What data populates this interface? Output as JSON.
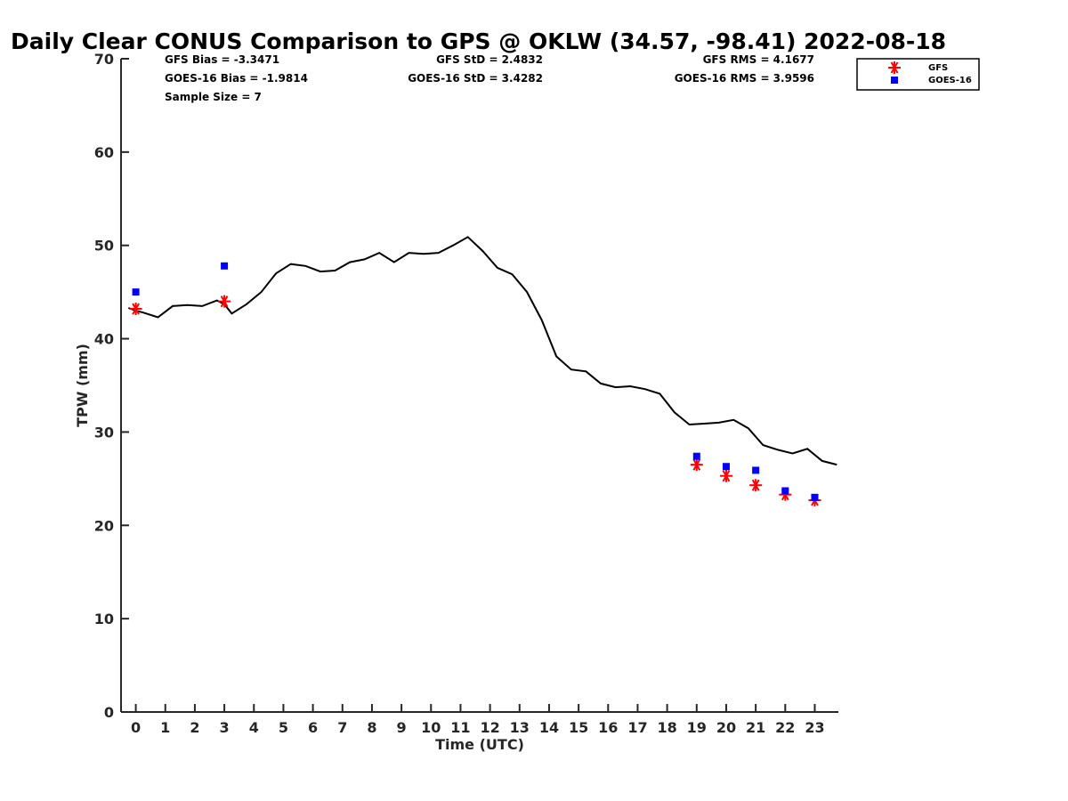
{
  "chart_data": {
    "type": "line",
    "title": "Daily Clear CONUS Comparison to GPS @ OKLW (34.57, -98.41) 2022-08-18",
    "xlabel": "Time (UTC)",
    "ylabel": "TPW (mm)",
    "xlim": [
      -0.5,
      23.8
    ],
    "ylim": [
      0,
      70
    ],
    "x_ticks": [
      "0",
      "1",
      "2",
      "3",
      "4",
      "5",
      "6",
      "7",
      "8",
      "9",
      "10",
      "11",
      "12",
      "13",
      "14",
      "15",
      "16",
      "17",
      "18",
      "19",
      "20",
      "21",
      "22",
      "23"
    ],
    "y_ticks": [
      "0",
      "10",
      "20",
      "30",
      "40",
      "50",
      "60",
      "70"
    ],
    "grid": false,
    "legend_position": "top-right",
    "stats": {
      "gfs_bias": "GFS Bias = -3.3471",
      "goes_bias": "GOES-16 Bias = -1.9814",
      "sample_size": "Sample Size = 7",
      "gfs_std": "GFS StD = 2.4832",
      "goes_std": "GOES-16 StD = 3.4282",
      "gfs_rms": "GFS RMS = 4.1677",
      "goes_rms": "GOES-16 RMS = 3.9596"
    },
    "series": [
      {
        "kind": "line",
        "color": "#000000",
        "points": [
          [
            -0.25,
            43.3
          ],
          [
            0.0,
            43.0
          ],
          [
            0.25,
            42.8
          ],
          [
            0.75,
            42.3
          ],
          [
            1.25,
            43.5
          ],
          [
            1.75,
            43.6
          ],
          [
            2.25,
            43.5
          ],
          [
            2.75,
            44.1
          ],
          [
            3.0,
            43.7
          ],
          [
            3.25,
            42.7
          ],
          [
            3.75,
            43.7
          ],
          [
            4.25,
            45.0
          ],
          [
            4.75,
            47.0
          ],
          [
            5.25,
            48.0
          ],
          [
            5.75,
            47.8
          ],
          [
            6.25,
            47.2
          ],
          [
            6.75,
            47.3
          ],
          [
            7.25,
            48.2
          ],
          [
            7.75,
            48.5
          ],
          [
            8.25,
            49.2
          ],
          [
            8.75,
            48.2
          ],
          [
            9.25,
            49.2
          ],
          [
            9.75,
            49.1
          ],
          [
            10.25,
            49.2
          ],
          [
            10.75,
            50.0
          ],
          [
            11.25,
            50.9
          ],
          [
            11.75,
            49.4
          ],
          [
            12.25,
            47.6
          ],
          [
            12.75,
            46.9
          ],
          [
            13.25,
            45.0
          ],
          [
            13.75,
            42.0
          ],
          [
            14.25,
            38.1
          ],
          [
            14.75,
            36.7
          ],
          [
            15.25,
            36.5
          ],
          [
            15.75,
            35.2
          ],
          [
            16.25,
            34.8
          ],
          [
            16.75,
            34.9
          ],
          [
            17.25,
            34.6
          ],
          [
            17.75,
            34.1
          ],
          [
            18.25,
            32.1
          ],
          [
            18.75,
            30.8
          ],
          [
            19.25,
            30.9
          ],
          [
            19.75,
            31.0
          ],
          [
            20.25,
            31.3
          ],
          [
            20.75,
            30.4
          ],
          [
            21.25,
            28.6
          ],
          [
            21.75,
            28.1
          ],
          [
            22.25,
            27.7
          ],
          [
            22.75,
            28.2
          ],
          [
            23.25,
            26.9
          ],
          [
            23.75,
            26.5
          ]
        ]
      },
      {
        "name": "GFS",
        "kind": "star",
        "color": "#ff0000",
        "x": [
          0,
          3,
          19,
          20,
          21,
          22,
          23
        ],
        "y": [
          43.2,
          44.0,
          26.5,
          25.3,
          24.3,
          23.3,
          22.7
        ]
      },
      {
        "name": "GOES-16",
        "kind": "square",
        "color": "#0000ff",
        "x": [
          0,
          3,
          19,
          20,
          21,
          22,
          23
        ],
        "y": [
          45.0,
          47.8,
          27.4,
          26.3,
          25.9,
          23.7,
          23.0
        ]
      }
    ]
  }
}
